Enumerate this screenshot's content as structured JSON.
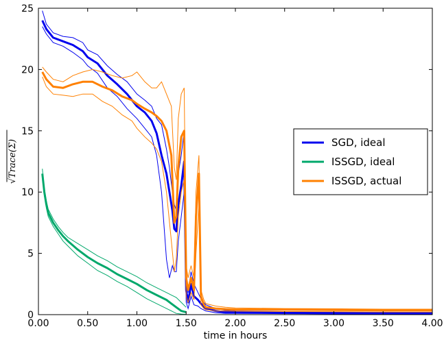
{
  "chart_data": {
    "type": "line",
    "xlabel": "time in hours",
    "ylabel": "√Trace(Σ)",
    "xlim": [
      0.0,
      4.0
    ],
    "ylim": [
      0,
      25
    ],
    "xticks": [
      0.0,
      0.5,
      1.0,
      1.5,
      2.0,
      2.5,
      3.0,
      3.5,
      4.0
    ],
    "xtick_labels": [
      "0.00",
      "0.50",
      "1.00",
      "1.50",
      "2.00",
      "2.50",
      "3.00",
      "3.50",
      "4.00"
    ],
    "yticks": [
      0,
      5,
      10,
      15,
      20,
      25
    ],
    "ytick_labels": [
      "0",
      "5",
      "10",
      "15",
      "20",
      "25"
    ],
    "grid": false,
    "legend_position": "center-right",
    "series": [
      {
        "name": "SGD, ideal",
        "color": "#0000ee",
        "x": [
          0.04,
          0.08,
          0.15,
          0.25,
          0.35,
          0.45,
          0.5,
          0.6,
          0.7,
          0.8,
          0.9,
          1.0,
          1.08,
          1.15,
          1.2,
          1.25,
          1.3,
          1.33,
          1.36,
          1.38,
          1.4,
          1.42,
          1.45,
          1.48,
          1.5,
          1.52,
          1.55,
          1.58,
          1.62,
          1.65,
          1.7,
          1.8,
          1.9,
          2.0,
          2.5,
          3.0,
          3.5,
          4.0
        ],
        "y": [
          24.0,
          23.3,
          22.6,
          22.3,
          22.0,
          21.5,
          21.0,
          20.5,
          19.5,
          18.8,
          18.0,
          17.0,
          16.5,
          15.8,
          14.8,
          13.0,
          11.5,
          10.0,
          8.5,
          7.0,
          6.8,
          9.0,
          10.5,
          12.5,
          2.0,
          1.0,
          2.5,
          1.5,
          1.2,
          0.9,
          0.5,
          0.3,
          0.2,
          0.2,
          0.15,
          0.12,
          0.12,
          0.1
        ],
        "band_upper": [
          24.8,
          23.7,
          23.0,
          22.7,
          22.6,
          22.2,
          21.6,
          21.2,
          20.3,
          19.6,
          19.0,
          18.0,
          17.5,
          17.0,
          16.0,
          15.5,
          13.5,
          12.0,
          10.0,
          9.0,
          8.5,
          11.5,
          13.0,
          15.0,
          3.5,
          1.8,
          3.5,
          2.5,
          1.8,
          1.3,
          0.8,
          0.5,
          0.35,
          0.3,
          0.25,
          0.2,
          0.2,
          0.18
        ],
        "band_lower": [
          23.5,
          22.9,
          22.2,
          21.9,
          21.4,
          20.8,
          20.3,
          19.7,
          18.5,
          17.8,
          16.8,
          16.0,
          15.2,
          14.5,
          13.0,
          10.0,
          4.5,
          3.0,
          4.0,
          3.5,
          3.5,
          6.0,
          8.0,
          10.0,
          1.0,
          0.5,
          1.5,
          0.8,
          0.7,
          0.5,
          0.3,
          0.15,
          0.1,
          0.1,
          0.08,
          0.06,
          0.06,
          0.05
        ]
      },
      {
        "name": "ISSGD, ideal",
        "color": "#00a86b",
        "x": [
          0.04,
          0.06,
          0.08,
          0.1,
          0.15,
          0.2,
          0.25,
          0.3,
          0.4,
          0.5,
          0.6,
          0.7,
          0.8,
          0.9,
          1.0,
          1.1,
          1.2,
          1.3,
          1.35,
          1.4,
          1.45,
          1.5
        ],
        "y": [
          11.5,
          10.0,
          9.0,
          8.3,
          7.5,
          6.9,
          6.4,
          6.0,
          5.3,
          4.7,
          4.2,
          3.8,
          3.3,
          2.9,
          2.5,
          2.0,
          1.6,
          1.2,
          0.9,
          0.6,
          0.3,
          0.2
        ],
        "band_upper": [
          11.9,
          10.3,
          9.3,
          8.6,
          7.8,
          7.2,
          6.7,
          6.3,
          5.8,
          5.3,
          4.8,
          4.4,
          3.9,
          3.5,
          3.1,
          2.6,
          2.2,
          1.8,
          1.6,
          1.4,
          1.0,
          0.6
        ],
        "band_lower": [
          11.2,
          9.7,
          8.7,
          8.0,
          7.2,
          6.6,
          6.0,
          5.6,
          4.8,
          4.2,
          3.6,
          3.2,
          2.7,
          2.3,
          1.8,
          1.3,
          0.9,
          0.5,
          0.3,
          0.1,
          0.05,
          0.02
        ]
      },
      {
        "name": "ISSGD, actual",
        "color": "#ff8000",
        "x": [
          0.04,
          0.08,
          0.15,
          0.25,
          0.35,
          0.45,
          0.55,
          0.65,
          0.75,
          0.85,
          0.95,
          1.0,
          1.08,
          1.15,
          1.2,
          1.25,
          1.3,
          1.35,
          1.38,
          1.4,
          1.42,
          1.45,
          1.48,
          1.5,
          1.52,
          1.55,
          1.58,
          1.6,
          1.63,
          1.65,
          1.68,
          1.7,
          1.8,
          1.9,
          2.0,
          2.5,
          3.0,
          3.5,
          4.0
        ],
        "y": [
          19.8,
          19.2,
          18.6,
          18.5,
          18.8,
          19.0,
          19.0,
          18.6,
          18.3,
          17.8,
          17.5,
          17.2,
          16.8,
          16.5,
          16.2,
          15.8,
          15.0,
          13.0,
          7.5,
          8.0,
          12.0,
          14.5,
          15.0,
          3.0,
          2.0,
          3.0,
          2.0,
          8.0,
          11.5,
          1.5,
          0.8,
          0.6,
          0.5,
          0.45,
          0.42,
          0.4,
          0.38,
          0.36,
          0.36
        ],
        "band_upper": [
          20.2,
          19.8,
          19.2,
          19.0,
          19.5,
          19.8,
          20.0,
          19.8,
          19.5,
          19.3,
          19.5,
          19.8,
          19.0,
          18.5,
          18.5,
          19.0,
          18.0,
          17.0,
          12.0,
          11.0,
          16.0,
          18.0,
          18.5,
          4.0,
          3.0,
          4.0,
          3.0,
          10.0,
          13.0,
          2.0,
          1.2,
          0.9,
          0.7,
          0.6,
          0.55,
          0.5,
          0.48,
          0.45,
          0.45
        ],
        "band_lower": [
          19.4,
          18.6,
          18.0,
          17.9,
          17.8,
          18.0,
          18.0,
          17.4,
          17.0,
          16.3,
          15.8,
          15.2,
          14.5,
          14.0,
          13.5,
          12.5,
          10.0,
          6.0,
          3.5,
          4.5,
          8.0,
          10.0,
          11.0,
          1.5,
          1.0,
          1.8,
          1.2,
          5.0,
          9.0,
          0.8,
          0.5,
          0.4,
          0.3,
          0.3,
          0.28,
          0.25,
          0.24,
          0.22,
          0.22
        ]
      }
    ]
  }
}
